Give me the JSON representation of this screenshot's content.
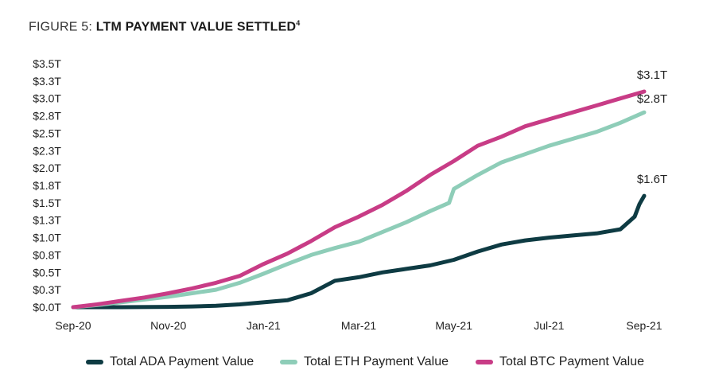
{
  "title": {
    "lead": "FIGURE 5: ",
    "main": "LTM PAYMENT VALUE SETTLED",
    "footnote": "4"
  },
  "chart_data": {
    "type": "line",
    "x_ticks": [
      "Sep-20",
      "Nov-20",
      "Jan-21",
      "Mar-21",
      "May-21",
      "Jul-21",
      "Sep-21"
    ],
    "y_ticks": [
      "$0.0T",
      "$0.3T",
      "$0.5T",
      "$0.8T",
      "$1.0T",
      "$1.3T",
      "$1.5T",
      "$1.8T",
      "$2.0T",
      "$2.3T",
      "$2.5T",
      "$2.8T",
      "$3.0T",
      "$3.3T",
      "$3.5T"
    ],
    "ylim": [
      0,
      3.5
    ],
    "x_unit": "months since Sep-20",
    "xlim": [
      0,
      12
    ],
    "legend_position": "bottom",
    "series": [
      {
        "name": "Total ADA Payment Value",
        "color": "#0e3b43",
        "end_label": "$1.6T",
        "points": [
          [
            0,
            0
          ],
          [
            1,
            0
          ],
          [
            2,
            0.005
          ],
          [
            2.5,
            0.01
          ],
          [
            3,
            0.02
          ],
          [
            3.5,
            0.04
          ],
          [
            4,
            0.07
          ],
          [
            4.5,
            0.1
          ],
          [
            5,
            0.2
          ],
          [
            5.5,
            0.38
          ],
          [
            6,
            0.43
          ],
          [
            6.5,
            0.5
          ],
          [
            7,
            0.55
          ],
          [
            7.5,
            0.6
          ],
          [
            8,
            0.68
          ],
          [
            8.5,
            0.8
          ],
          [
            9,
            0.9
          ],
          [
            9.5,
            0.96
          ],
          [
            10,
            1.0
          ],
          [
            10.5,
            1.03
          ],
          [
            11,
            1.06
          ],
          [
            11.5,
            1.12
          ],
          [
            11.8,
            1.3
          ],
          [
            11.9,
            1.48
          ],
          [
            12,
            1.6
          ]
        ]
      },
      {
        "name": "Total ETH Payment Value",
        "color": "#8ecdb8",
        "end_label": "$2.8T",
        "points": [
          [
            0,
            0
          ],
          [
            0.5,
            0.03
          ],
          [
            1,
            0.07
          ],
          [
            1.5,
            0.11
          ],
          [
            2,
            0.15
          ],
          [
            2.5,
            0.2
          ],
          [
            3,
            0.25
          ],
          [
            3.5,
            0.35
          ],
          [
            4,
            0.48
          ],
          [
            4.5,
            0.62
          ],
          [
            5,
            0.75
          ],
          [
            5.5,
            0.85
          ],
          [
            6,
            0.94
          ],
          [
            6.5,
            1.08
          ],
          [
            7,
            1.22
          ],
          [
            7.5,
            1.38
          ],
          [
            7.9,
            1.5
          ],
          [
            8.0,
            1.7
          ],
          [
            8.5,
            1.9
          ],
          [
            9,
            2.08
          ],
          [
            9.5,
            2.2
          ],
          [
            10,
            2.32
          ],
          [
            10.5,
            2.42
          ],
          [
            11,
            2.52
          ],
          [
            11.5,
            2.65
          ],
          [
            12,
            2.8
          ]
        ]
      },
      {
        "name": "Total BTC Payment Value",
        "color": "#c83c86",
        "end_label": "$3.1T",
        "points": [
          [
            0,
            0
          ],
          [
            0.5,
            0.04
          ],
          [
            1,
            0.09
          ],
          [
            1.5,
            0.14
          ],
          [
            2,
            0.2
          ],
          [
            2.5,
            0.27
          ],
          [
            3,
            0.35
          ],
          [
            3.5,
            0.45
          ],
          [
            4,
            0.62
          ],
          [
            4.5,
            0.77
          ],
          [
            5,
            0.95
          ],
          [
            5.5,
            1.15
          ],
          [
            6,
            1.3
          ],
          [
            6.5,
            1.47
          ],
          [
            7,
            1.67
          ],
          [
            7.5,
            1.9
          ],
          [
            8,
            2.1
          ],
          [
            8.5,
            2.32
          ],
          [
            9,
            2.45
          ],
          [
            9.5,
            2.6
          ],
          [
            10,
            2.7
          ],
          [
            10.5,
            2.8
          ],
          [
            11,
            2.9
          ],
          [
            11.5,
            3.0
          ],
          [
            12,
            3.1
          ]
        ]
      }
    ]
  }
}
